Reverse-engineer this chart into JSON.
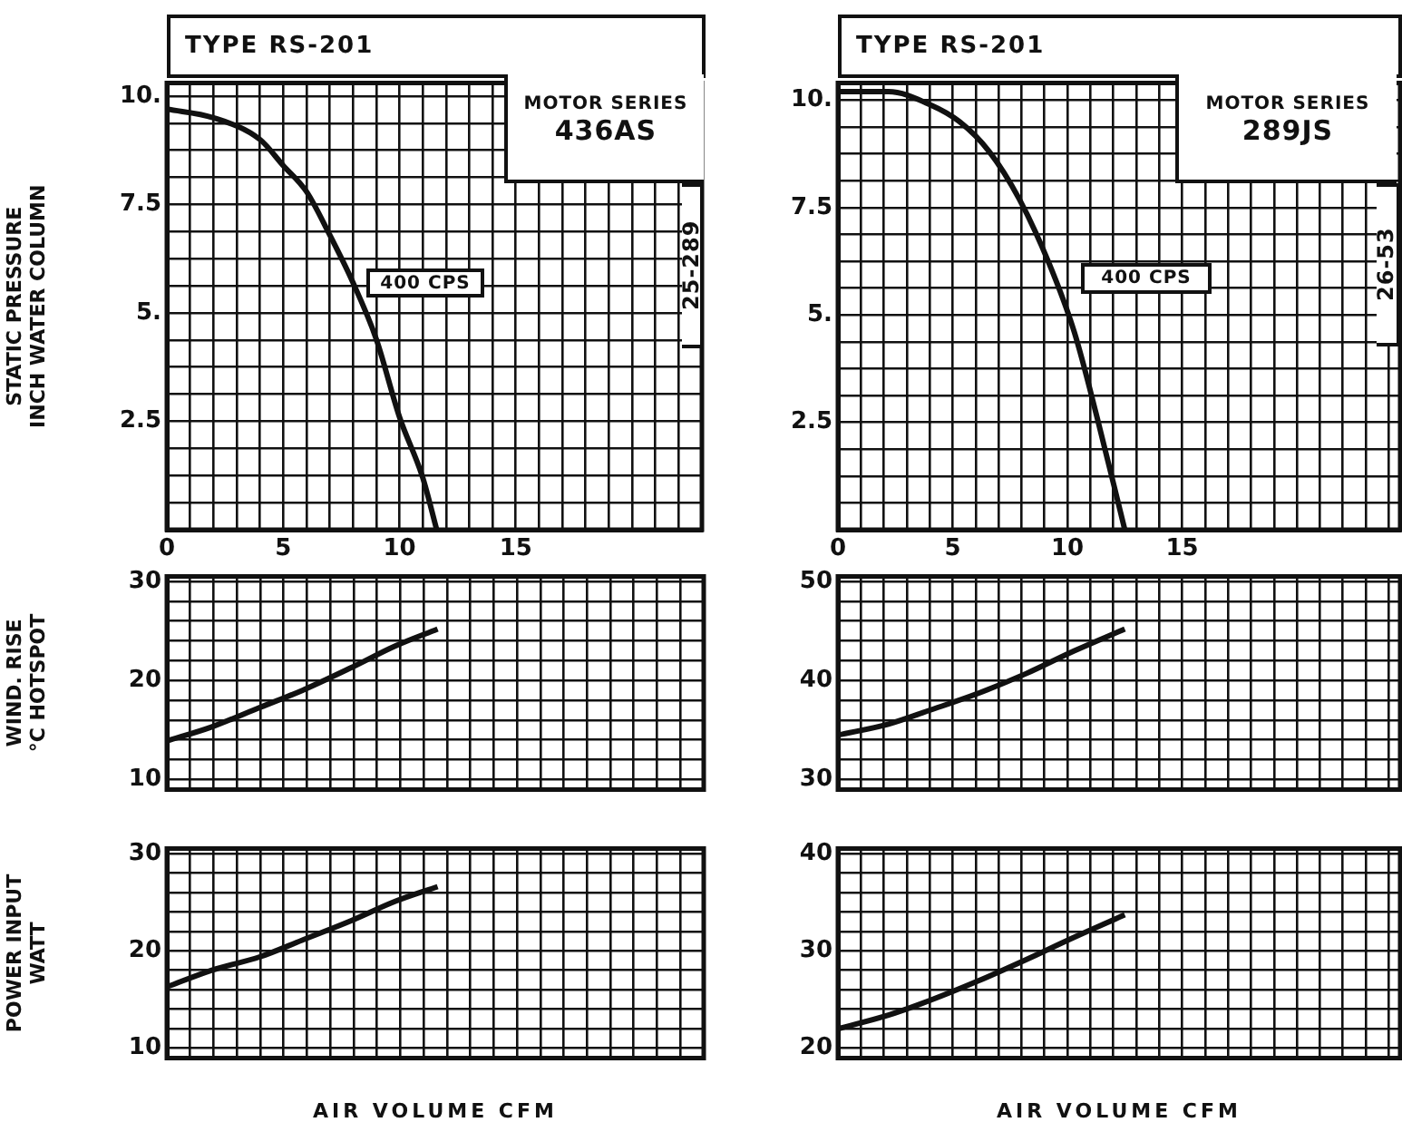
{
  "chart_data": [
    {
      "type": "line",
      "title": "TYPE RS-201",
      "ylabel": "STATIC PRESSURE\nINCH WATER COLUMN",
      "annotations": [
        "MOTOR SERIES\n436AS",
        "400 CPS",
        "25-289"
      ],
      "x": [
        0,
        2,
        4,
        5,
        6,
        7,
        8,
        9,
        10,
        11,
        11.6
      ],
      "values": [
        9.7,
        9.5,
        9.0,
        8.4,
        7.8,
        6.8,
        5.7,
        4.4,
        2.6,
        1.2,
        0
      ],
      "color": "#111111",
      "xlim": [
        0,
        23
      ],
      "xticks": [
        0,
        {
          "value": 1,
          "label": null
        },
        {
          "value": 2,
          "label": null
        },
        {
          "value": 3,
          "label": null
        },
        {
          "value": 4,
          "label": null
        },
        5,
        {
          "value": 6,
          "label": null
        },
        {
          "value": 7,
          "label": null
        },
        {
          "value": 8,
          "label": null
        },
        {
          "value": 9,
          "label": null
        },
        10,
        {
          "value": 11,
          "label": null
        },
        {
          "value": 12,
          "label": null
        },
        {
          "value": 13,
          "label": null
        },
        {
          "value": 14,
          "label": null
        },
        15,
        {
          "value": 16,
          "label": null
        },
        {
          "value": 17,
          "label": null
        },
        {
          "value": 18,
          "label": null
        },
        {
          "value": 19,
          "label": null
        },
        {
          "value": 20,
          "label": null
        },
        {
          "value": 21,
          "label": null
        },
        {
          "value": 22,
          "label": null
        },
        {
          "value": 23,
          "label": null
        }
      ],
      "ylim": [
        0,
        10.3
      ],
      "yticks": [
        {
          "value": 0,
          "label": null
        },
        {
          "value": 0.625,
          "label": null
        },
        {
          "value": 1.25,
          "label": null
        },
        {
          "value": 1.875,
          "label": null
        },
        2.5,
        {
          "value": 3.125,
          "label": null
        },
        {
          "value": 3.75,
          "label": null
        },
        {
          "value": 4.375,
          "label": null
        },
        {
          "value": 5,
          "label": "5."
        },
        {
          "value": 5.625,
          "label": null
        },
        {
          "value": 6.25,
          "label": null
        },
        {
          "value": 6.875,
          "label": null
        },
        7.5,
        {
          "value": 8.125,
          "label": null
        },
        {
          "value": 8.75,
          "label": null
        },
        {
          "value": 9.375,
          "label": null
        },
        {
          "value": 10,
          "label": "10."
        }
      ],
      "grid": true
    },
    {
      "type": "line",
      "title": "TYPE RS-201",
      "annotations": [
        "MOTOR SERIES\n289JS",
        "400 CPS",
        "26-53"
      ],
      "x": [
        0,
        2.2,
        4.0,
        5.3,
        6.6,
        7.9,
        9.2,
        10.3,
        11.3,
        12.5
      ],
      "values": [
        10.2,
        10.2,
        9.9,
        9.5,
        8.8,
        7.7,
        6.2,
        4.6,
        2.6,
        0
      ],
      "color": "#111111",
      "xlim": [
        0,
        24.5
      ],
      "xticks": [
        0,
        {
          "value": 1,
          "label": null
        },
        {
          "value": 2,
          "label": null
        },
        {
          "value": 3,
          "label": null
        },
        {
          "value": 4,
          "label": null
        },
        5,
        {
          "value": 6,
          "label": null
        },
        {
          "value": 7,
          "label": null
        },
        {
          "value": 8,
          "label": null
        },
        {
          "value": 9,
          "label": null
        },
        10,
        {
          "value": 11,
          "label": null
        },
        {
          "value": 12,
          "label": null
        },
        {
          "value": 13,
          "label": null
        },
        {
          "value": 14,
          "label": null
        },
        15,
        {
          "value": 16,
          "label": null
        },
        {
          "value": 17,
          "label": null
        },
        {
          "value": 18,
          "label": null
        },
        {
          "value": 19,
          "label": null
        },
        {
          "value": 20,
          "label": null
        },
        {
          "value": 21,
          "label": null
        },
        {
          "value": 22,
          "label": null
        },
        {
          "value": 23,
          "label": null
        },
        {
          "value": 24,
          "label": null
        }
      ],
      "ylim": [
        0,
        10.4
      ],
      "yticks": [
        {
          "value": 0,
          "label": null
        },
        {
          "value": 0.625,
          "label": null
        },
        {
          "value": 1.25,
          "label": null
        },
        {
          "value": 1.875,
          "label": null
        },
        2.5,
        {
          "value": 3.125,
          "label": null
        },
        {
          "value": 3.75,
          "label": null
        },
        {
          "value": 4.375,
          "label": null
        },
        {
          "value": 5,
          "label": "5."
        },
        {
          "value": 5.625,
          "label": null
        },
        {
          "value": 6.25,
          "label": null
        },
        {
          "value": 6.875,
          "label": null
        },
        7.5,
        {
          "value": 8.125,
          "label": null
        },
        {
          "value": 8.75,
          "label": null
        },
        {
          "value": 9.375,
          "label": null
        },
        {
          "value": 10,
          "label": "10."
        }
      ],
      "grid": true
    },
    {
      "type": "line",
      "ylabel": "WIND. RISE\n°C HOTSPOT",
      "x": [
        0,
        1.9,
        4.0,
        5.8,
        7.9,
        9.8,
        11.6
      ],
      "values": [
        13.9,
        15.3,
        17.3,
        19.0,
        21.3,
        23.5,
        25.2
      ],
      "color": "#111111",
      "xlim": [
        0,
        23
      ],
      "xticks": [
        {
          "value": 0,
          "label": null
        },
        {
          "value": 1,
          "label": null
        },
        {
          "value": 2,
          "label": null
        },
        {
          "value": 3,
          "label": null
        },
        {
          "value": 4,
          "label": null
        },
        {
          "value": 5,
          "label": null
        },
        {
          "value": 6,
          "label": null
        },
        {
          "value": 7,
          "label": null
        },
        {
          "value": 8,
          "label": null
        },
        {
          "value": 9,
          "label": null
        },
        {
          "value": 10,
          "label": null
        },
        {
          "value": 11,
          "label": null
        },
        {
          "value": 12,
          "label": null
        },
        {
          "value": 13,
          "label": null
        },
        {
          "value": 14,
          "label": null
        },
        {
          "value": 15,
          "label": null
        },
        {
          "value": 16,
          "label": null
        },
        {
          "value": 17,
          "label": null
        },
        {
          "value": 18,
          "label": null
        },
        {
          "value": 19,
          "label": null
        },
        {
          "value": 20,
          "label": null
        },
        {
          "value": 21,
          "label": null
        },
        {
          "value": 22,
          "label": null
        },
        {
          "value": 23,
          "label": null
        }
      ],
      "ylim": [
        9,
        30.5
      ],
      "yticks": [
        10,
        {
          "value": 12,
          "label": null
        },
        {
          "value": 14,
          "label": null
        },
        {
          "value": 16,
          "label": null
        },
        {
          "value": 18,
          "label": null
        },
        20,
        {
          "value": 22,
          "label": null
        },
        {
          "value": 24,
          "label": null
        },
        {
          "value": 26,
          "label": null
        },
        {
          "value": 28,
          "label": null
        },
        30
      ],
      "grid": true,
      "tick_labels": "y"
    },
    {
      "type": "line",
      "x": [
        0,
        2.2,
        4.0,
        6.1,
        8.2,
        10.3,
        12.5
      ],
      "values": [
        34.5,
        35.6,
        37.0,
        38.7,
        40.7,
        43.0,
        45.2
      ],
      "color": "#111111",
      "xlim": [
        0,
        24.5
      ],
      "xticks": [
        {
          "value": 0,
          "label": null
        },
        {
          "value": 1,
          "label": null
        },
        {
          "value": 2,
          "label": null
        },
        {
          "value": 3,
          "label": null
        },
        {
          "value": 4,
          "label": null
        },
        {
          "value": 5,
          "label": null
        },
        {
          "value": 6,
          "label": null
        },
        {
          "value": 7,
          "label": null
        },
        {
          "value": 8,
          "label": null
        },
        {
          "value": 9,
          "label": null
        },
        {
          "value": 10,
          "label": null
        },
        {
          "value": 11,
          "label": null
        },
        {
          "value": 12,
          "label": null
        },
        {
          "value": 13,
          "label": null
        },
        {
          "value": 14,
          "label": null
        },
        {
          "value": 15,
          "label": null
        },
        {
          "value": 16,
          "label": null
        },
        {
          "value": 17,
          "label": null
        },
        {
          "value": 18,
          "label": null
        },
        {
          "value": 19,
          "label": null
        },
        {
          "value": 20,
          "label": null
        },
        {
          "value": 21,
          "label": null
        },
        {
          "value": 22,
          "label": null
        },
        {
          "value": 23,
          "label": null
        },
        {
          "value": 24,
          "label": null
        }
      ],
      "ylim": [
        29,
        50.5
      ],
      "yticks": [
        30,
        {
          "value": 32,
          "label": null
        },
        {
          "value": 34,
          "label": null
        },
        {
          "value": 36,
          "label": null
        },
        {
          "value": 38,
          "label": null
        },
        40,
        {
          "value": 42,
          "label": null
        },
        {
          "value": 44,
          "label": null
        },
        {
          "value": 46,
          "label": null
        },
        {
          "value": 48,
          "label": null
        },
        50
      ],
      "grid": true,
      "tick_labels": "y"
    },
    {
      "type": "line",
      "ylabel": "POWER INPUT\nWATT",
      "xlabel": "AIR VOLUME CFM",
      "x": [
        0,
        1.9,
        4.0,
        5.8,
        7.9,
        9.8,
        11.6
      ],
      "values": [
        16.3,
        18.0,
        19.4,
        21.1,
        23.1,
        25.1,
        26.6
      ],
      "color": "#111111",
      "xlim": [
        0,
        23
      ],
      "xticks": [
        {
          "value": 0,
          "label": null
        },
        {
          "value": 1,
          "label": null
        },
        {
          "value": 2,
          "label": null
        },
        {
          "value": 3,
          "label": null
        },
        {
          "value": 4,
          "label": null
        },
        {
          "value": 5,
          "label": null
        },
        {
          "value": 6,
          "label": null
        },
        {
          "value": 7,
          "label": null
        },
        {
          "value": 8,
          "label": null
        },
        {
          "value": 9,
          "label": null
        },
        {
          "value": 10,
          "label": null
        },
        {
          "value": 11,
          "label": null
        },
        {
          "value": 12,
          "label": null
        },
        {
          "value": 13,
          "label": null
        },
        {
          "value": 14,
          "label": null
        },
        {
          "value": 15,
          "label": null
        },
        {
          "value": 16,
          "label": null
        },
        {
          "value": 17,
          "label": null
        },
        {
          "value": 18,
          "label": null
        },
        {
          "value": 19,
          "label": null
        },
        {
          "value": 20,
          "label": null
        },
        {
          "value": 21,
          "label": null
        },
        {
          "value": 22,
          "label": null
        },
        {
          "value": 23,
          "label": null
        }
      ],
      "ylim": [
        9,
        30.5
      ],
      "yticks": [
        10,
        {
          "value": 12,
          "label": null
        },
        {
          "value": 14,
          "label": null
        },
        {
          "value": 16,
          "label": null
        },
        {
          "value": 18,
          "label": null
        },
        20,
        {
          "value": 22,
          "label": null
        },
        {
          "value": 24,
          "label": null
        },
        {
          "value": 26,
          "label": null
        },
        {
          "value": 28,
          "label": null
        },
        30
      ],
      "grid": true,
      "tick_labels": "y"
    },
    {
      "type": "line",
      "xlabel": "AIR VOLUME CFM",
      "x": [
        0,
        2.2,
        4.0,
        6.1,
        8.2,
        10.3,
        12.5
      ],
      "values": [
        22.0,
        23.4,
        24.9,
        26.9,
        29.1,
        31.4,
        33.7
      ],
      "color": "#111111",
      "xlim": [
        0,
        24.5
      ],
      "xticks": [
        {
          "value": 0,
          "label": null
        },
        {
          "value": 1,
          "label": null
        },
        {
          "value": 2,
          "label": null
        },
        {
          "value": 3,
          "label": null
        },
        {
          "value": 4,
          "label": null
        },
        {
          "value": 5,
          "label": null
        },
        {
          "value": 6,
          "label": null
        },
        {
          "value": 7,
          "label": null
        },
        {
          "value": 8,
          "label": null
        },
        {
          "value": 9,
          "label": null
        },
        {
          "value": 10,
          "label": null
        },
        {
          "value": 11,
          "label": null
        },
        {
          "value": 12,
          "label": null
        },
        {
          "value": 13,
          "label": null
        },
        {
          "value": 14,
          "label": null
        },
        {
          "value": 15,
          "label": null
        },
        {
          "value": 16,
          "label": null
        },
        {
          "value": 17,
          "label": null
        },
        {
          "value": 18,
          "label": null
        },
        {
          "value": 19,
          "label": null
        },
        {
          "value": 20,
          "label": null
        },
        {
          "value": 21,
          "label": null
        },
        {
          "value": 22,
          "label": null
        },
        {
          "value": 23,
          "label": null
        },
        {
          "value": 24,
          "label": null
        }
      ],
      "ylim": [
        19,
        40.5
      ],
      "yticks": [
        20,
        {
          "value": 22,
          "label": null
        },
        {
          "value": 24,
          "label": null
        },
        {
          "value": 26,
          "label": null
        },
        {
          "value": 28,
          "label": null
        },
        30,
        {
          "value": 32,
          "label": null
        },
        {
          "value": 34,
          "label": null
        },
        {
          "value": 36,
          "label": null
        },
        {
          "value": 38,
          "label": null
        },
        40
      ],
      "grid": true,
      "tick_labels": "y"
    }
  ]
}
